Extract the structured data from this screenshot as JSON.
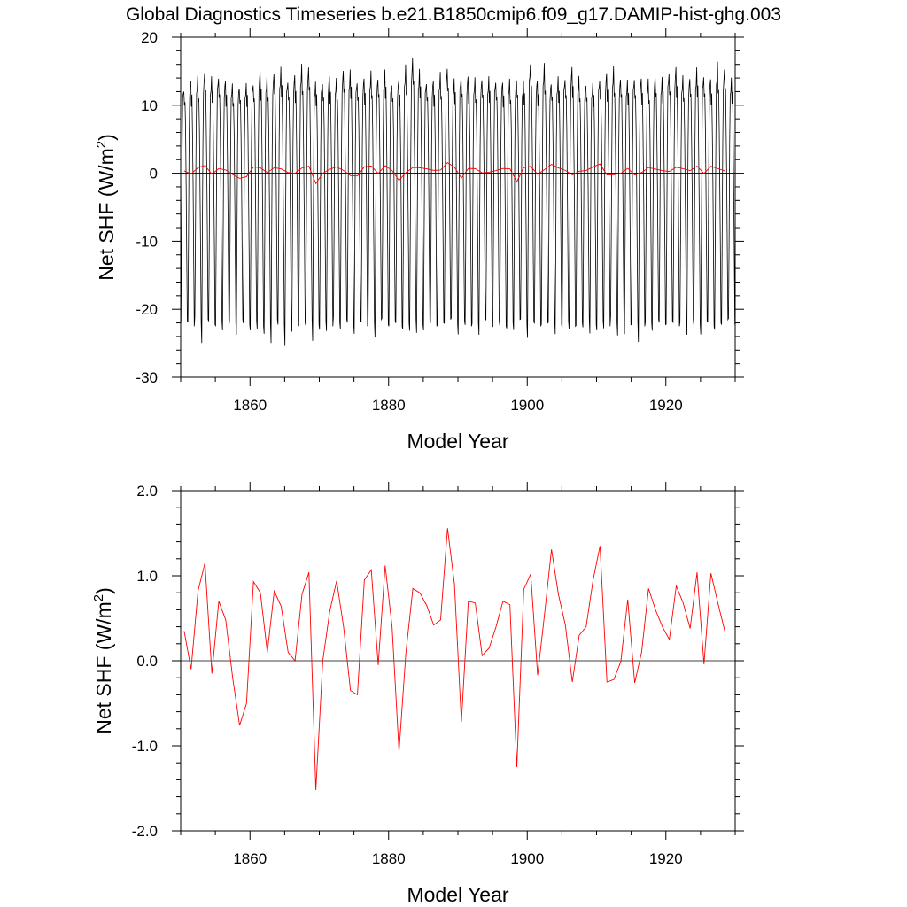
{
  "title": "Global Diagnostics Timeseries b.e21.B1850cmip6.f09_g17.DAMIP-hist-ghg.003",
  "colors": {
    "monthly": "#000000",
    "annual": "#ff0000",
    "zero_line": "#000000"
  },
  "chart_data": [
    {
      "type": "line",
      "xlabel": "Model Year",
      "ylabel": "Net SHF (W/m2)",
      "ylabel_parts": {
        "base": "Net SHF (W/m",
        "sup": "2",
        "tail": ")"
      },
      "xlim": [
        1850,
        1930
      ],
      "ylim": [
        -30,
        20
      ],
      "xticks": [
        1860,
        1880,
        1900,
        1920
      ],
      "xtick_labels": [
        "1860",
        "1880",
        "1900",
        "1920"
      ],
      "yticks": [
        -30,
        -20,
        -10,
        0,
        10,
        20
      ],
      "ytick_labels": [
        "-30",
        "-20",
        "-10",
        "0",
        "10",
        "20"
      ],
      "zero_line": 0,
      "series": [
        {
          "kind": "monthly",
          "x_start": 1850.04,
          "x_step": 0.08333,
          "seasonal_cycle": [
            -21.5,
            -10,
            4,
            11,
            12,
            13,
            10,
            11,
            6,
            -2,
            -12,
            -22
          ],
          "feb_anomalies": [
            0,
            -0.3,
            -0.2,
            -3.2,
            -0.5,
            -0.4,
            -1.6,
            -0.6,
            -2.0,
            -0.8,
            -1.1,
            -1.4,
            -2.6,
            -3.2,
            -1.0,
            -3.4,
            -1.8,
            -1.4,
            -0.6,
            -3.4,
            -1.0,
            -1.7,
            -0.1,
            -1.1,
            -0.7,
            -1.6,
            -0.3,
            -0.9,
            -2.4,
            -0.1,
            -0.5,
            -0.5,
            -1.9,
            -1.4,
            -2.2,
            -1.1,
            -0.5,
            -1.3,
            -0.3,
            0.0,
            -1.7,
            -0.8,
            -1.1,
            -2.0,
            -0.3,
            -0.6,
            -0.9,
            -1.8,
            -1.3,
            -0.2,
            -2.2,
            -0.6,
            -1.2,
            -0.2,
            -2.4,
            -0.7,
            -1.4,
            -1.4,
            -0.9,
            -2.3,
            -1.1,
            -1.3,
            0.0,
            -2.1,
            -2.4,
            -0.3,
            -3.3,
            -0.9,
            -1.4,
            -0.7,
            -0.2,
            -0.4,
            -0.9,
            -2.0,
            -1.1,
            -1.7,
            -0.3,
            -2.0,
            -0.5,
            -0.1
          ],
          "summer_anomalies": [
            -0.5,
            0.5,
            0.8,
            2.0,
            1.0,
            1.4,
            0.5,
            -0.3,
            -0.4,
            0.0,
            0.4,
            2.0,
            1.0,
            1.8,
            2.4,
            0.8,
            1.4,
            2.6,
            2.8,
            0.2,
            0.6,
            1.2,
            0.5,
            2.3,
            2.0,
            0.7,
            0.9,
            1.6,
            1.0,
            2.0,
            0.4,
            0.5,
            2.5,
            4.2,
            2.1,
            0.6,
            0.5,
            1.4,
            2.6,
            0.7,
            1.5,
            1.2,
            0.6,
            0.9,
            1.0,
            0.8,
            0.3,
            0.4,
            0.9,
            0.4,
            3.5,
            0.6,
            2.7,
            0.3,
            1.0,
            1.2,
            2.6,
            0.8,
            0.1,
            0.0,
            1.0,
            1.7,
            2.2,
            1.0,
            0.5,
            1.2,
            0.9,
            0.4,
            1.3,
            0.9,
            2.1,
            2.6,
            0.9,
            1.1,
            2.3,
            1.6,
            0.8,
            2.9,
            2.5,
            0.8
          ]
        },
        {
          "kind": "annual",
          "x_start": 1850.5,
          "x_step": 1,
          "values": [
            0.35,
            -0.1,
            0.82,
            1.15,
            -0.15,
            0.7,
            0.48,
            -0.2,
            -0.76,
            -0.5,
            0.93,
            0.8,
            0.1,
            0.82,
            0.64,
            0.1,
            0.0,
            0.78,
            1.04,
            -1.52,
            0.0,
            0.58,
            0.94,
            0.4,
            -0.35,
            -0.4,
            0.95,
            1.07,
            -0.05,
            1.12,
            0.4,
            -1.07,
            0.1,
            0.85,
            0.8,
            0.65,
            0.42,
            0.48,
            1.56,
            0.9,
            -0.72,
            0.7,
            0.68,
            0.06,
            0.15,
            0.4,
            0.7,
            0.66,
            -1.25,
            0.84,
            1.02,
            -0.17,
            0.55,
            1.31,
            0.78,
            0.42,
            -0.25,
            0.3,
            0.4,
            0.95,
            1.35,
            -0.25,
            -0.22,
            -0.01,
            0.72,
            -0.26,
            0.1,
            0.85,
            0.6,
            0.4,
            0.25,
            0.88,
            0.68,
            0.38,
            1.04,
            -0.04,
            1.03,
            0.68,
            0.35
          ]
        }
      ]
    },
    {
      "type": "line",
      "xlabel": "Model Year",
      "ylabel": "Net SHF (W/m2)",
      "ylabel_parts": {
        "base": "Net SHF (W/m",
        "sup": "2",
        "tail": ")"
      },
      "xlim": [
        1850,
        1930
      ],
      "ylim": [
        -2.0,
        2.0
      ],
      "xticks": [
        1860,
        1880,
        1900,
        1920
      ],
      "xtick_labels": [
        "1860",
        "1880",
        "1900",
        "1920"
      ],
      "yticks": [
        -2.0,
        -1.0,
        0.0,
        1.0,
        2.0
      ],
      "ytick_labels": [
        "-2.0",
        "-1.0",
        "0.0",
        "1.0",
        "2.0"
      ],
      "zero_line": 0,
      "series": [
        {
          "kind": "annual",
          "x_start": 1850.5,
          "x_step": 1,
          "values": [
            0.35,
            -0.1,
            0.82,
            1.15,
            -0.15,
            0.7,
            0.48,
            -0.2,
            -0.76,
            -0.5,
            0.93,
            0.8,
            0.1,
            0.82,
            0.64,
            0.1,
            0.0,
            0.78,
            1.04,
            -1.52,
            0.0,
            0.58,
            0.94,
            0.4,
            -0.35,
            -0.4,
            0.95,
            1.07,
            -0.05,
            1.12,
            0.4,
            -1.07,
            0.1,
            0.85,
            0.8,
            0.65,
            0.42,
            0.48,
            1.56,
            0.9,
            -0.72,
            0.7,
            0.68,
            0.06,
            0.15,
            0.4,
            0.7,
            0.66,
            -1.25,
            0.84,
            1.02,
            -0.17,
            0.55,
            1.31,
            0.78,
            0.42,
            -0.25,
            0.3,
            0.4,
            0.95,
            1.35,
            -0.25,
            -0.22,
            -0.01,
            0.72,
            -0.26,
            0.1,
            0.85,
            0.6,
            0.4,
            0.25,
            0.88,
            0.68,
            0.38,
            1.04,
            -0.04,
            1.03,
            0.68,
            0.35
          ]
        }
      ]
    }
  ]
}
